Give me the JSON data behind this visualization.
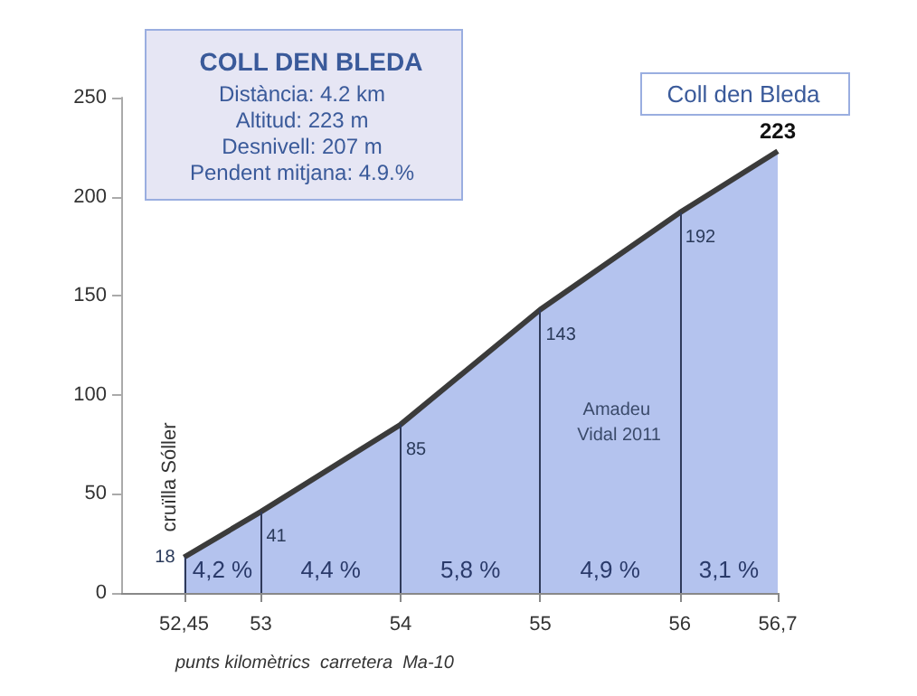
{
  "chart_data": {
    "type": "area",
    "title": "COLL DEN BLEDA",
    "xlabel": "punts kilomètrics  carretera  Ma-10",
    "x": [
      52.45,
      53,
      54,
      55,
      56,
      56.7
    ],
    "series": [
      {
        "color": "#b4c3ee",
        "values": [
          18,
          41,
          85,
          143,
          192,
          223
        ]
      }
    ],
    "xlim": [
      52,
      56.7
    ],
    "xticks": [
      {
        "value": 52.45,
        "label": "52,45"
      },
      53,
      54,
      55,
      56,
      {
        "value": 56.7,
        "label": "56,7"
      }
    ],
    "ylim": [
      0,
      250
    ],
    "yticks": [
      0,
      50,
      100,
      150,
      200,
      250
    ],
    "grid": false,
    "data_labels": true,
    "ref_lines": [
      {
        "axis": "x",
        "value": 52.45,
        "label": "cruïlla Sóller"
      },
      {
        "axis": "x",
        "value": 53,
        "label": null
      },
      {
        "axis": "x",
        "value": 54,
        "label": null
      },
      {
        "axis": "x",
        "value": 55,
        "label": null
      },
      {
        "axis": "x",
        "value": 56,
        "label": null
      }
    ],
    "annotations": [
      "Distància: 4.2 km",
      "Altitud: 223 m",
      "Desnivell: 207 m",
      "Pendent mitjana: 4.9.%",
      "Coll den Bleda",
      "Amadeu Vidal 2011",
      "4,2 %",
      "4,4 %",
      "5,8 %",
      "4,9 %",
      "3,1 %"
    ]
  }
}
